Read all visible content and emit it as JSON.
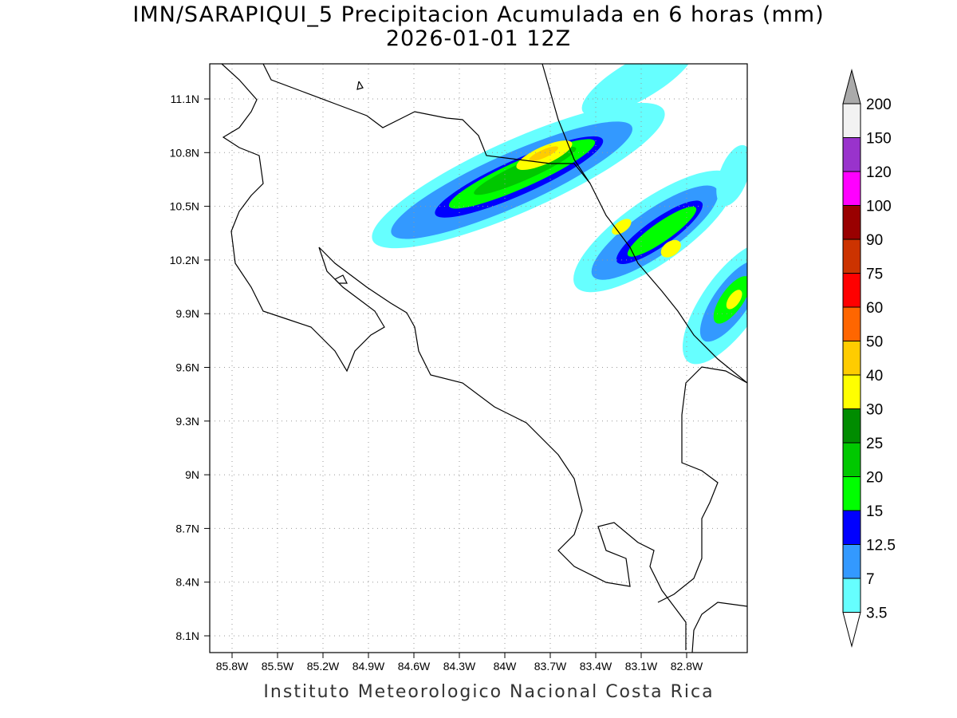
{
  "title": "IMN/SARAPIQUI_5 Precipitacion Acumulada en 6 horas (mm)",
  "subtitle": "2026-01-01 12Z",
  "footer": "Instituto Meteorologico Nacional Costa Rica",
  "map": {
    "lat_labels": [
      "11.1N",
      "10.8N",
      "10.5N",
      "10.2N",
      "9.9N",
      "9.6N",
      "9.3N",
      "9N",
      "8.7N",
      "8.4N",
      "8.1N"
    ],
    "lon_labels": [
      "85.8W",
      "85.5W",
      "85.2W",
      "84.9W",
      "84.6W",
      "84.3W",
      "84W",
      "83.7W",
      "83.4W",
      "83.1W",
      "82.8W"
    ]
  },
  "colorbar": {
    "levels": [
      "200",
      "150",
      "120",
      "100",
      "90",
      "75",
      "60",
      "50",
      "40",
      "30",
      "25",
      "20",
      "15",
      "12.5",
      "7",
      "3.5"
    ],
    "colors": [
      "#f2f2f2",
      "#9933cc",
      "#ff00ff",
      "#990000",
      "#cc3300",
      "#ff0000",
      "#ff6600",
      "#ffcc00",
      "#ffff00",
      "#008c00",
      "#00c800",
      "#00ff00",
      "#0000ff",
      "#3399ff",
      "#66ffff"
    ],
    "over_color": "#aaaaaa",
    "under_color": "#ffffff"
  }
}
